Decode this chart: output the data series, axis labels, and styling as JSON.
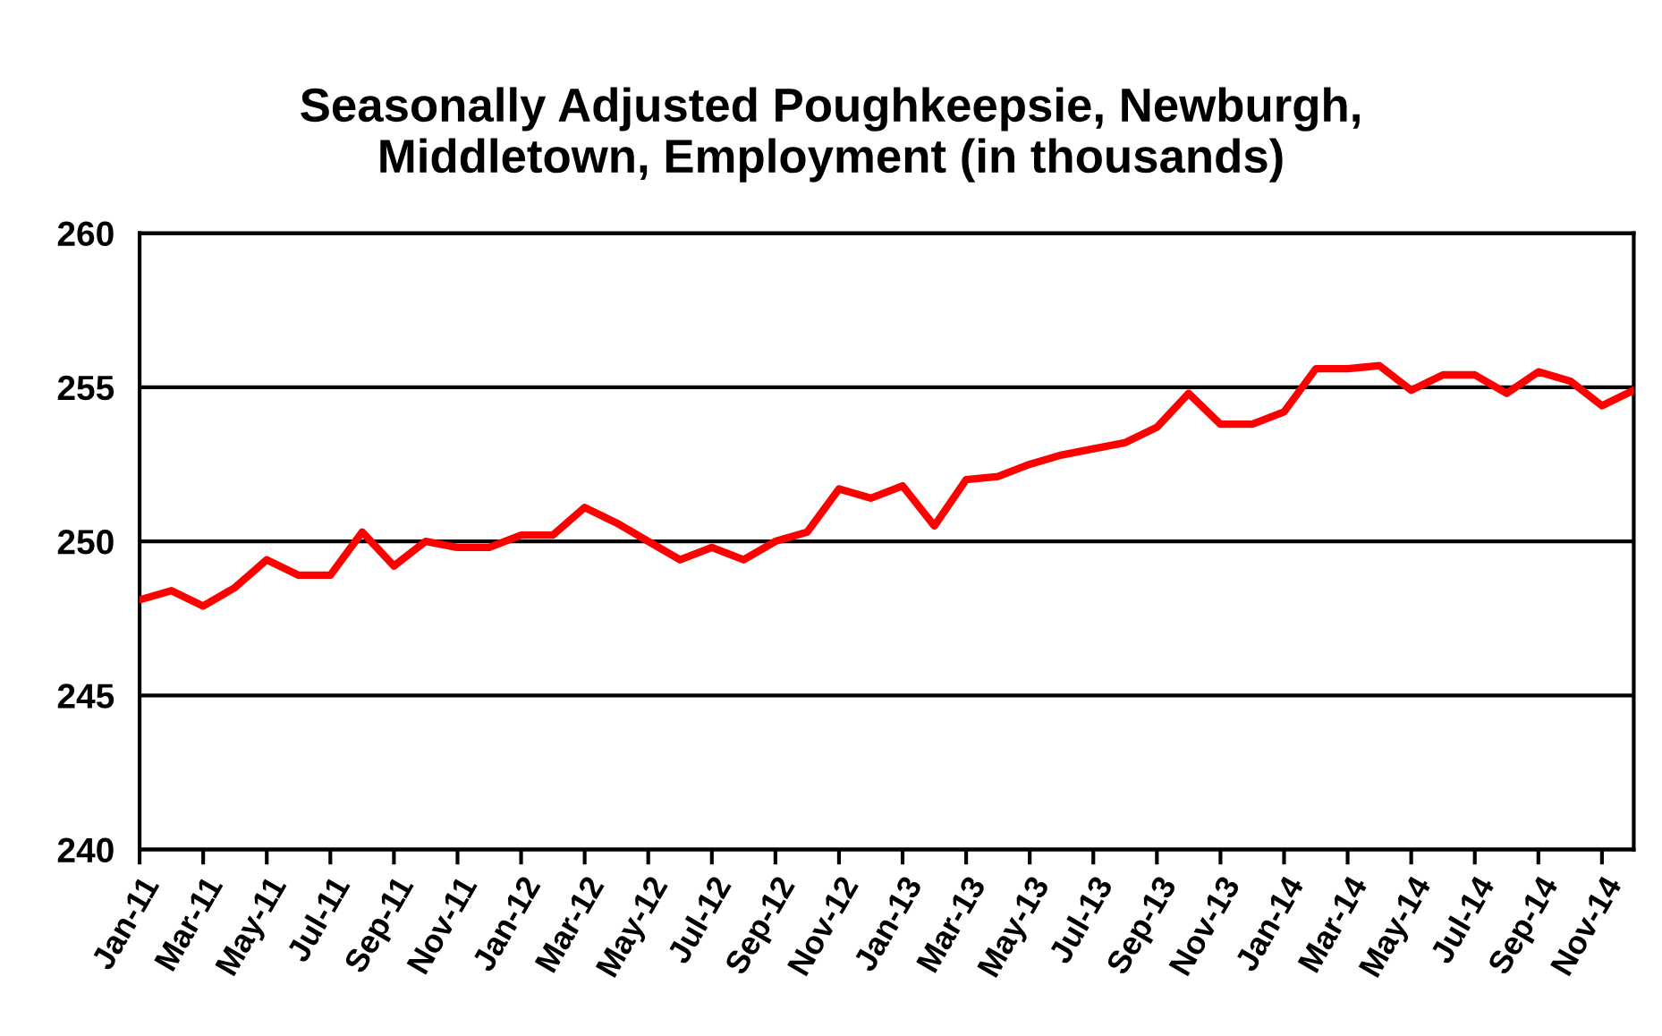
{
  "chart_data": {
    "type": "line",
    "title": "Seasonally Adjusted Poughkeepsie, Newburgh,\nMiddletown, Employment (in thousands)",
    "categories": [
      "Jan-11",
      null,
      "Mar-11",
      null,
      "May-11",
      null,
      "Jul-11",
      null,
      "Sep-11",
      null,
      "Nov-11",
      null,
      "Jan-12",
      null,
      "Mar-12",
      null,
      "May-12",
      null,
      "Jul-12",
      null,
      "Sep-12",
      null,
      "Nov-12",
      null,
      "Jan-13",
      null,
      "Mar-13",
      null,
      "May-13",
      null,
      "Jul-13",
      null,
      "Sep-13",
      null,
      "Nov-13",
      null,
      "Jan-14",
      null,
      "Mar-14",
      null,
      "May-14",
      null,
      "Jul-14",
      null,
      "Sep-14",
      null,
      "Nov-14",
      null
    ],
    "series": [
      {
        "color": "#ff0000",
        "values": [
          248.1,
          248.4,
          247.9,
          248.5,
          249.4,
          248.9,
          248.9,
          250.3,
          249.2,
          250.0,
          249.8,
          249.8,
          250.2,
          250.2,
          251.1,
          250.6,
          250.0,
          249.4,
          249.8,
          249.4,
          250.0,
          250.3,
          251.7,
          251.4,
          251.8,
          250.5,
          252.0,
          252.1,
          252.5,
          252.8,
          253.0,
          253.2,
          253.7,
          254.8,
          253.8,
          253.8,
          254.2,
          255.6,
          255.6,
          255.7,
          254.9,
          255.4,
          255.4,
          254.8,
          255.5,
          255.2,
          254.4,
          254.9
        ]
      }
    ],
    "ylim": [
      240,
      260
    ],
    "yticks": [
      240,
      245,
      250,
      255,
      260
    ],
    "grid": "y",
    "legend": false,
    "marker": "none",
    "line_style": "solid"
  }
}
